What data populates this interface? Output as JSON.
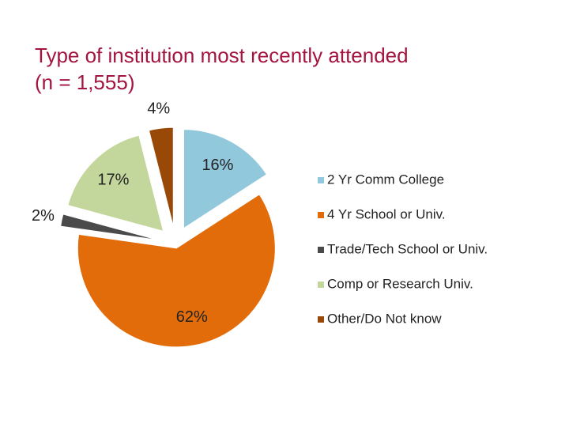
{
  "chart_data": {
    "type": "pie",
    "title": [
      "Type of institution most recently attended",
      "(n = 1,555)"
    ],
    "categories": [
      "2 Yr Comm College",
      "4 Yr School or Univ.",
      "Trade/Tech School or Univ.",
      "Comp or Research Univ.",
      "Other/Do Not know"
    ],
    "values": [
      16,
      62,
      2,
      17,
      4
    ],
    "value_labels": [
      "16%",
      "62%",
      "2%",
      "17%",
      "4%"
    ],
    "colors": [
      "#92c8dc",
      "#e36c0a",
      "#4a4a4a",
      "#c3d69b",
      "#984807"
    ],
    "legend": "right"
  }
}
